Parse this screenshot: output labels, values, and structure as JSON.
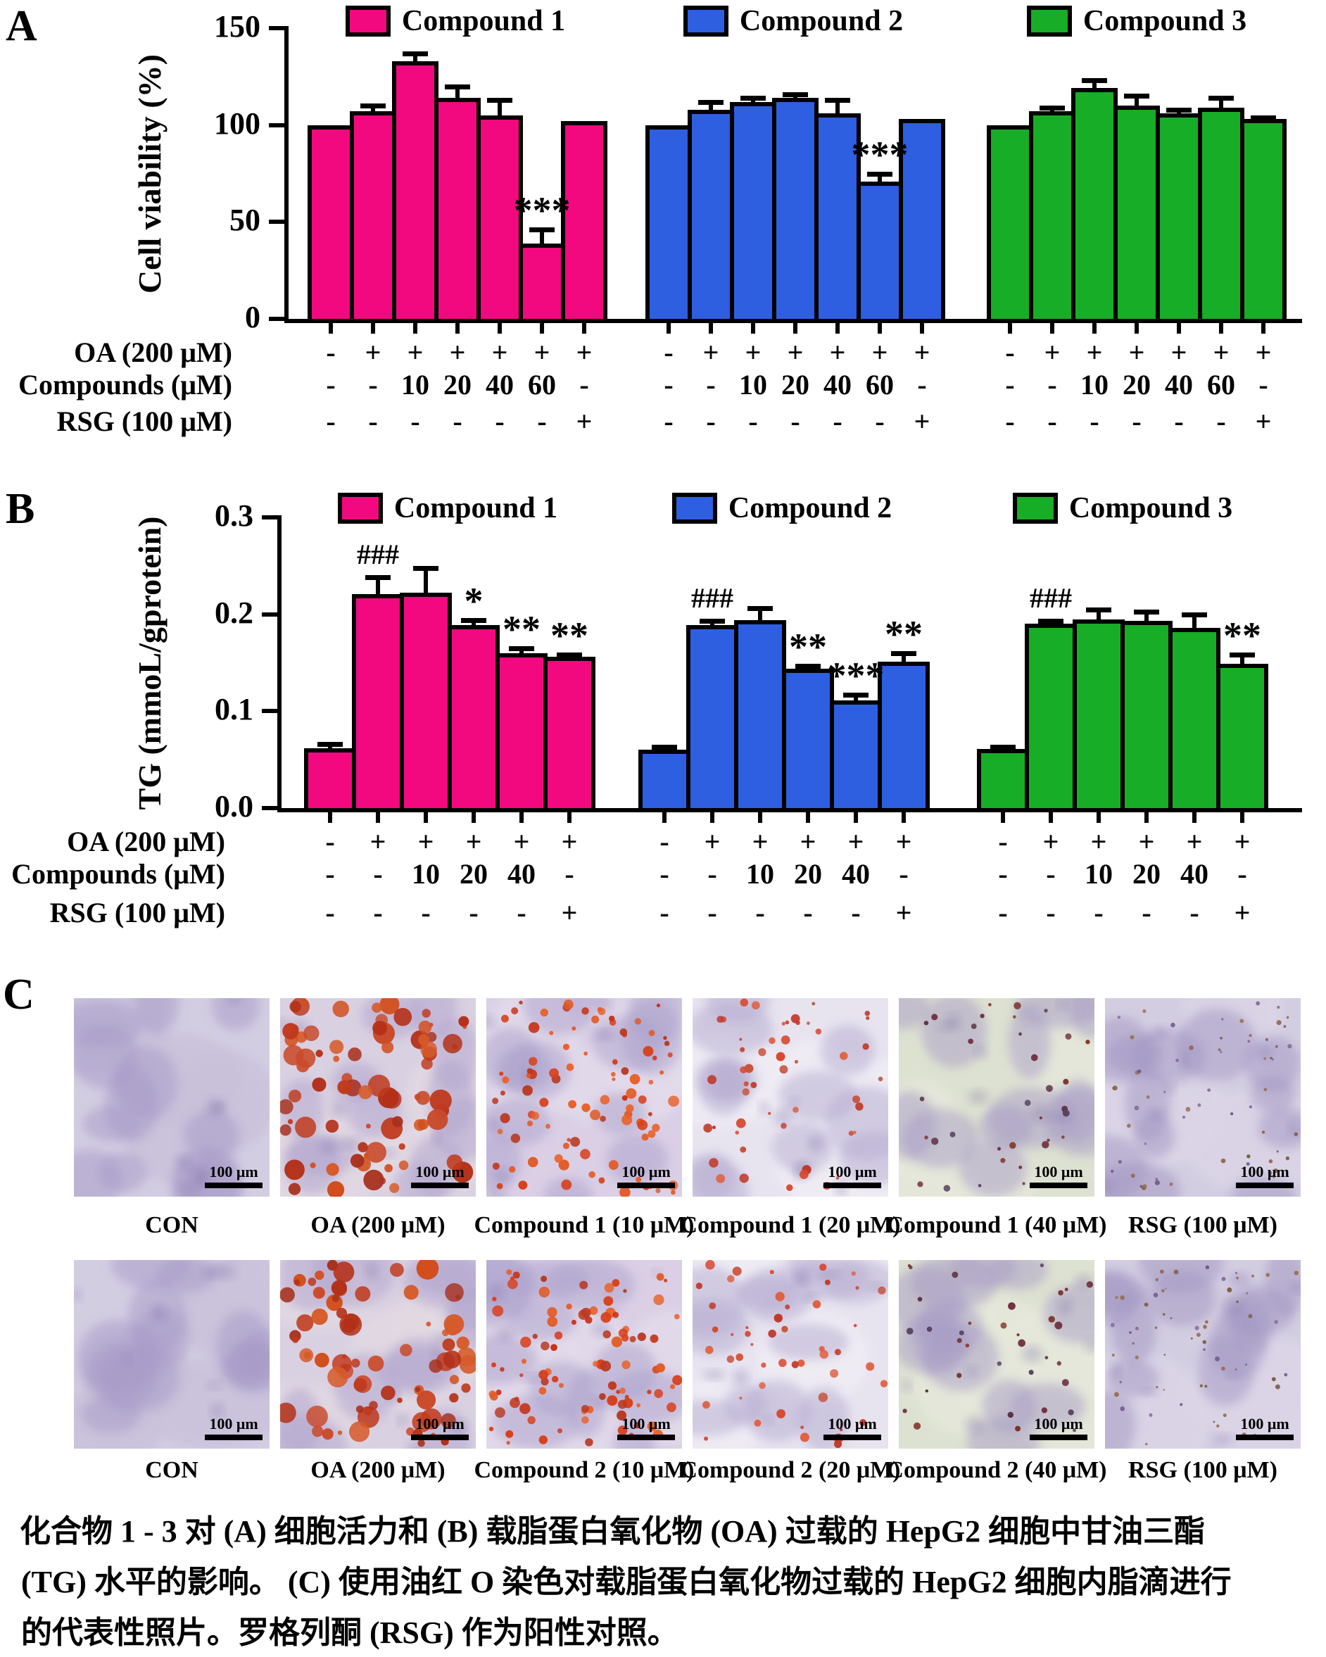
{
  "panel_letters": {
    "a": "A",
    "b": "B",
    "c": "C"
  },
  "chart_data": [
    {
      "type": "bar",
      "panel": "A",
      "ylabel": "Cell viability (%)",
      "ylim": [
        0,
        150
      ],
      "yticks": [
        0,
        50,
        100,
        150
      ],
      "ytick_labels": [
        "0",
        "50",
        "100",
        "150"
      ],
      "grid": false,
      "legend_position": "top",
      "series": [
        {
          "name": "Compound 1",
          "color": "#F20980",
          "values": [
            100,
            107,
            133,
            114,
            105,
            39,
            102
          ],
          "errors": [
            0,
            3,
            4,
            6,
            8,
            7,
            0
          ],
          "annotations": [
            "",
            "",
            "",
            "",
            "",
            "***",
            ""
          ]
        },
        {
          "name": "Compound 2",
          "color": "#2E5FE0",
          "values": [
            100,
            108,
            112,
            114,
            106,
            71,
            103
          ],
          "errors": [
            0,
            4,
            2,
            2,
            7,
            4,
            0
          ],
          "annotations": [
            "",
            "",
            "",
            "",
            "",
            "***",
            ""
          ]
        },
        {
          "name": "Compound 3",
          "color": "#17AD26",
          "values": [
            100,
            107,
            119,
            110,
            106,
            109,
            103
          ],
          "errors": [
            0,
            2,
            4,
            5,
            2,
            5,
            1
          ],
          "annotations": [
            "",
            "",
            "",
            "",
            "",
            "",
            ""
          ]
        }
      ],
      "treatment_rows": [
        {
          "label": "OA (200 μM)",
          "symbols": [
            "-",
            "+",
            "+",
            "+",
            "+",
            "+",
            "+"
          ]
        },
        {
          "label": "Compounds  (μM)",
          "symbols": [
            "-",
            "-",
            "10",
            "20",
            "40",
            "60",
            "-"
          ]
        },
        {
          "label": "RSG (100 μM)",
          "symbols": [
            "-",
            "-",
            "-",
            "-",
            "-",
            "-",
            "+"
          ]
        }
      ]
    },
    {
      "type": "bar",
      "panel": "B",
      "ylabel": "TG (mmoL/gprotein)",
      "ylim": [
        0,
        0.3
      ],
      "yticks": [
        0,
        0.1,
        0.2,
        0.3
      ],
      "ytick_labels": [
        "0.0",
        "0.1",
        "0.2",
        "0.3"
      ],
      "grid": false,
      "legend_position": "top",
      "series": [
        {
          "name": "Compound 1",
          "color": "#F20980",
          "values": [
            0.062,
            0.221,
            0.222,
            0.189,
            0.16,
            0.156
          ],
          "errors": [
            0.004,
            0.017,
            0.026,
            0.005,
            0.005,
            0.002
          ],
          "annotations": [
            "",
            "###",
            "",
            "*",
            "**",
            "**"
          ]
        },
        {
          "name": "Compound 2",
          "color": "#2E5FE0",
          "values": [
            0.06,
            0.189,
            0.194,
            0.144,
            0.111,
            0.151
          ],
          "errors": [
            0.003,
            0.004,
            0.012,
            0.003,
            0.006,
            0.009
          ],
          "annotations": [
            "",
            "###",
            "",
            "**",
            "***",
            "**"
          ]
        },
        {
          "name": "Compound 3",
          "color": "#17AD26",
          "values": [
            0.061,
            0.19,
            0.195,
            0.193,
            0.186,
            0.149
          ],
          "errors": [
            0.002,
            0.003,
            0.01,
            0.01,
            0.014,
            0.009
          ],
          "annotations": [
            "",
            "###",
            "",
            "",
            "",
            "**"
          ]
        }
      ],
      "treatment_rows": [
        {
          "label": "OA (200 μM)",
          "symbols": [
            "-",
            "+",
            "+",
            "+",
            "+",
            "+"
          ]
        },
        {
          "label": "Compounds (μM)",
          "symbols": [
            "-",
            "-",
            "10",
            "20",
            "40",
            "-"
          ]
        },
        {
          "label": "RSG (100 μM)",
          "symbols": [
            "-",
            "-",
            "-",
            "-",
            "-",
            "+"
          ]
        }
      ]
    }
  ],
  "panel_c": {
    "scale_bar_label": "100 μm",
    "rows": [
      {
        "images": [
          {
            "label": "CON",
            "stain": "none"
          },
          {
            "label": "OA (200 μM)",
            "stain": "heavy"
          },
          {
            "label": "Compound 1 (10 μM)",
            "stain": "moderate"
          },
          {
            "label": "Compound 1 (20 μM)",
            "stain": "light"
          },
          {
            "label": "Compound 1 (40 μM)",
            "stain": "sparse-dark"
          },
          {
            "label": "RSG  (100 μM)",
            "stain": "minimal"
          }
        ]
      },
      {
        "images": [
          {
            "label": "CON",
            "stain": "none"
          },
          {
            "label": "OA (200 μM)",
            "stain": "heavy"
          },
          {
            "label": "Compound 2 (10 μM)",
            "stain": "moderate"
          },
          {
            "label": "Compound 2 (20 μM)",
            "stain": "light"
          },
          {
            "label": "Compound 2 (40 μM)",
            "stain": "sparse-dark"
          },
          {
            "label": "RSG  (100 μM)",
            "stain": "minimal"
          }
        ]
      }
    ]
  },
  "caption": {
    "lines": [
      "化合物 1 - 3 对 (A) 细胞活力和 (B) 载脂蛋白氧化物 (OA) 过载的 HepG2 细胞中甘油三酯",
      "(TG) 水平的影响。 (C) 使用油红 O 染色对载脂蛋白氧化物过载的 HepG2 细胞内脂滴进行",
      "的代表性照片。罗格列酮 (RSG) 作为阳性对照。"
    ]
  }
}
